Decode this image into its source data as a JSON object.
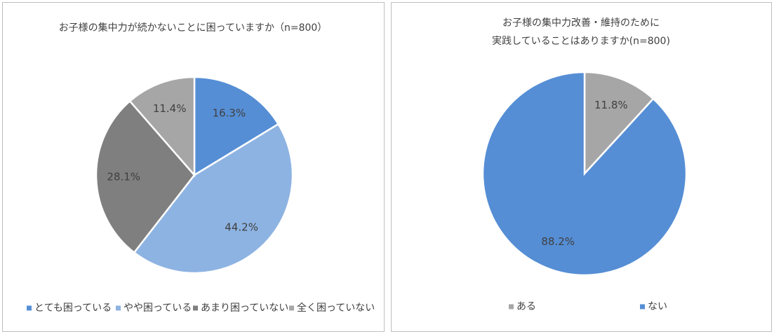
{
  "chart_data": [
    {
      "type": "pie",
      "title": [
        "お子様の集中力が続かないことに困っていますか（n=800）"
      ],
      "categories": [
        "とても困っている",
        "やや困っている",
        "あまり困っていない",
        "全く困っていない"
      ],
      "values": [
        16.3,
        44.2,
        28.1,
        11.4
      ],
      "value_labels": [
        "16.3%",
        "44.2%",
        "28.1%",
        "11.4%"
      ],
      "colors": [
        "#558ed5",
        "#8db3e2",
        "#7f7f7f",
        "#a6a6a6"
      ]
    },
    {
      "type": "pie",
      "title": [
        "お子様の集中力改善・維持のために",
        "実践していることはありますか(n=800)"
      ],
      "categories": [
        "ある",
        "ない"
      ],
      "values": [
        11.8,
        88.2
      ],
      "value_labels": [
        "11.8%",
        "88.2%"
      ],
      "colors": [
        "#a6a6a6",
        "#558ed5"
      ]
    }
  ]
}
